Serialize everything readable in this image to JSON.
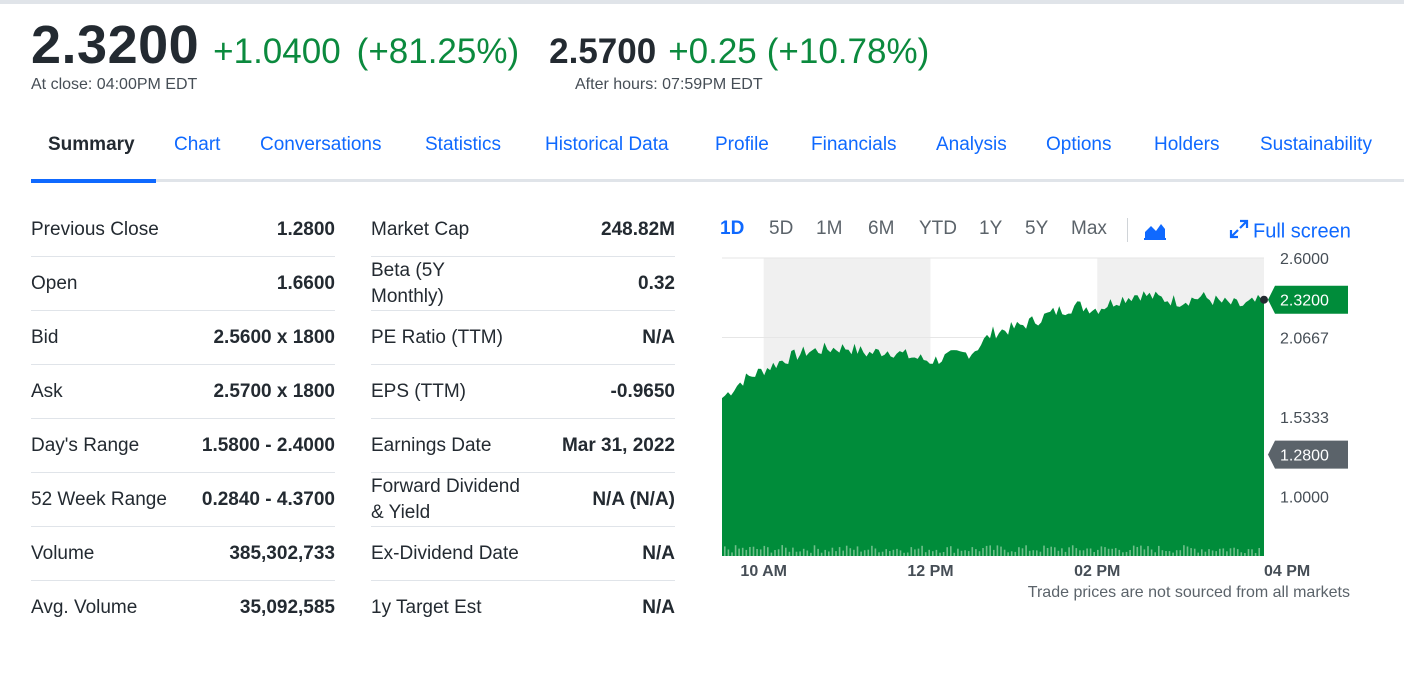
{
  "quote": {
    "price": "2.3200",
    "change": "+1.0400",
    "change_pct": "(+81.25%)",
    "close_label": "At close: 04:00PM EDT",
    "after_hours_price": "2.5700",
    "after_hours_change": "+0.25",
    "after_hours_pct": "(+10.78%)",
    "after_hours_label": "After hours: 07:59PM EDT",
    "up_color": "#0b8a3e"
  },
  "tabs": [
    {
      "label": "Summary",
      "active": true
    },
    {
      "label": "Chart"
    },
    {
      "label": "Conversations"
    },
    {
      "label": "Statistics"
    },
    {
      "label": "Historical Data"
    },
    {
      "label": "Profile"
    },
    {
      "label": "Financials"
    },
    {
      "label": "Analysis"
    },
    {
      "label": "Options"
    },
    {
      "label": "Holders"
    },
    {
      "label": "Sustainability"
    }
  ],
  "left_table": [
    {
      "label": "Previous Close",
      "value": "1.2800"
    },
    {
      "label": "Open",
      "value": "1.6600"
    },
    {
      "label": "Bid",
      "value": "2.5600 x 1800"
    },
    {
      "label": "Ask",
      "value": "2.5700 x 1800"
    },
    {
      "label": "Day's Range",
      "value": "1.5800 - 2.4000"
    },
    {
      "label": "52 Week Range",
      "value": "0.2840 - 4.3700"
    },
    {
      "label": "Volume",
      "value": "385,302,733"
    },
    {
      "label": "Avg. Volume",
      "value": "35,092,585"
    }
  ],
  "right_table": [
    {
      "label": "Market Cap",
      "value": "248.82M"
    },
    {
      "label": "Beta (5Y Monthly)",
      "value": "0.32"
    },
    {
      "label": "PE Ratio (TTM)",
      "value": "N/A"
    },
    {
      "label": "EPS (TTM)",
      "value": "-0.9650"
    },
    {
      "label": "Earnings Date",
      "value": "Mar 31, 2022"
    },
    {
      "label": "Forward Dividend & Yield",
      "value": "N/A (N/A)"
    },
    {
      "label": "Ex-Dividend Date",
      "value": "N/A"
    },
    {
      "label": "1y Target Est",
      "value": "N/A"
    }
  ],
  "chart_controls": {
    "ranges": [
      "1D",
      "5D",
      "1M",
      "6M",
      "YTD",
      "1Y",
      "5Y",
      "Max"
    ],
    "active_range": "1D",
    "chart_type_icon": "mountain-chart-icon",
    "fullscreen_label": "Full screen",
    "fullscreen_icon": "expand-arrows-icon"
  },
  "chart_data": {
    "type": "area",
    "x": [
      "09:30",
      "09:45",
      "10:00",
      "10:15",
      "10:30",
      "10:45",
      "11:00",
      "11:15",
      "11:30",
      "11:45",
      "12:00",
      "12:15",
      "12:30",
      "12:45",
      "13:00",
      "13:15",
      "13:30",
      "13:45",
      "14:00",
      "14:15",
      "14:30",
      "14:45",
      "15:00",
      "15:15",
      "15:30",
      "15:45",
      "16:00"
    ],
    "values": [
      1.66,
      1.78,
      1.85,
      1.92,
      1.97,
      1.99,
      2.0,
      1.96,
      1.98,
      1.94,
      1.91,
      1.94,
      1.97,
      2.1,
      2.13,
      2.18,
      2.24,
      2.28,
      2.26,
      2.32,
      2.36,
      2.33,
      2.31,
      2.34,
      2.3,
      2.28,
      2.32
    ],
    "x_tick_labels": [
      "10 AM",
      "12 PM",
      "02 PM",
      "04 PM"
    ],
    "y_tick_labels": [
      "2.6000",
      "2.0667",
      "1.5333",
      "1.0000"
    ],
    "ylim": [
      0.6,
      2.6
    ],
    "last_price": "2.3200",
    "previous_close": "1.2800",
    "series_color": "#008c3a",
    "shaded_hours": [
      "10:00-12:00",
      "14:00-16:00"
    ],
    "grid": true
  },
  "footnote": "Trade prices are not sourced from all markets"
}
